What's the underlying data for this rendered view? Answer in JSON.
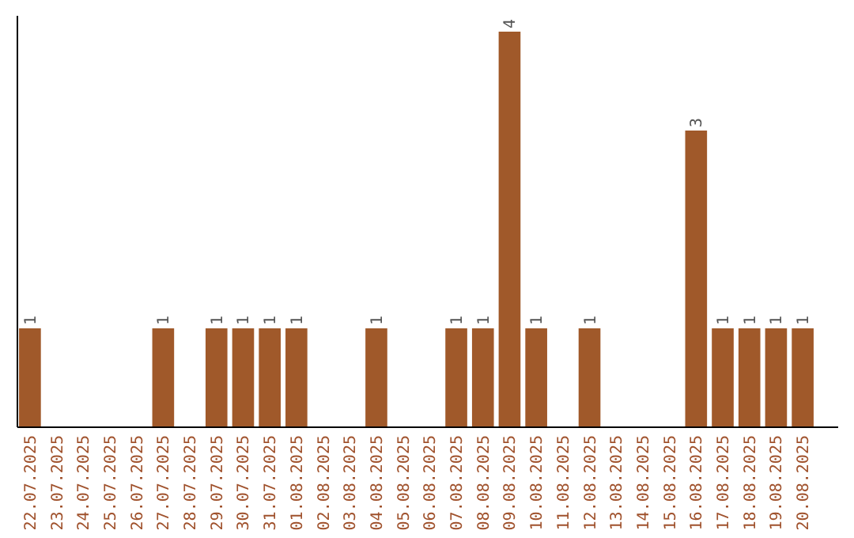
{
  "chart_data": {
    "type": "bar",
    "categories": [
      "22.07.2025",
      "23.07.2025",
      "24.07.2025",
      "25.07.2025",
      "26.07.2025",
      "27.07.2025",
      "28.07.2025",
      "29.07.2025",
      "30.07.2025",
      "31.07.2025",
      "01.08.2025",
      "02.08.2025",
      "03.08.2025",
      "04.08.2025",
      "05.08.2025",
      "06.08.2025",
      "07.08.2025",
      "08.08.2025",
      "09.08.2025",
      "10.08.2025",
      "11.08.2025",
      "12.08.2025",
      "13.08.2025",
      "14.08.2025",
      "15.08.2025",
      "16.08.2025",
      "17.08.2025",
      "18.08.2025",
      "19.08.2025",
      "20.08.2025"
    ],
    "values": [
      1,
      0,
      0,
      0,
      0,
      1,
      0,
      1,
      1,
      1,
      1,
      0,
      0,
      1,
      0,
      0,
      1,
      1,
      4,
      1,
      0,
      1,
      0,
      0,
      0,
      3,
      1,
      1,
      1,
      1
    ],
    "value_labels": [
      "1",
      null,
      null,
      null,
      null,
      "1",
      null,
      "1",
      "1",
      "1",
      "1",
      null,
      null,
      "1",
      null,
      null,
      "1",
      "1",
      "4",
      "1",
      null,
      "1",
      null,
      null,
      null,
      "3",
      "1",
      "1",
      "1",
      "1"
    ],
    "color": "#a0592a"
  }
}
